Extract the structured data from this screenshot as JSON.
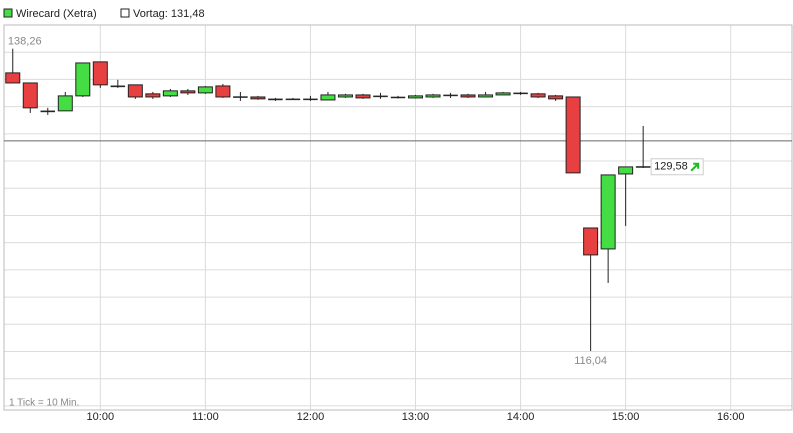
{
  "chart_data": {
    "type": "candlestick",
    "series": [
      {
        "name": "Wirecard (Xetra)",
        "up_color": "#44dd44",
        "down_color": "#e84040",
        "open": [
          136.48,
          135.74,
          133.69,
          133.69,
          134.79,
          137.29,
          135.53,
          135.6,
          134.94,
          134.79,
          135.16,
          135.01,
          135.52,
          134.71,
          134.71,
          134.57,
          134.57,
          134.55,
          134.49,
          134.71,
          134.86,
          134.79,
          134.71,
          134.64,
          134.71,
          134.86,
          134.86,
          134.71,
          134.86,
          135.01,
          134.94,
          134.79,
          134.71,
          125.08,
          123.54,
          129.05,
          129.6
        ],
        "high": [
          138.26,
          135.74,
          133.91,
          135.08,
          137.21,
          137.3,
          135.97,
          135.6,
          135.08,
          135.3,
          135.3,
          135.52,
          135.67,
          135.08,
          134.79,
          134.64,
          134.64,
          134.79,
          135.08,
          134.94,
          134.94,
          135.01,
          134.79,
          134.86,
          134.94,
          135.01,
          134.94,
          135.08,
          135.08,
          135.08,
          135.01,
          134.86,
          134.71,
          125.08,
          128.98,
          129.57,
          132.58
        ],
        "low": [
          135.74,
          133.54,
          133.39,
          133.69,
          134.71,
          135.38,
          135.38,
          134.57,
          134.57,
          134.71,
          134.86,
          134.94,
          134.64,
          134.42,
          134.5,
          134.42,
          134.5,
          134.42,
          134.49,
          134.64,
          134.57,
          134.57,
          134.6,
          134.6,
          134.64,
          134.64,
          134.64,
          134.71,
          134.86,
          134.86,
          134.64,
          134.42,
          129.13,
          116.04,
          121.04,
          125.23,
          129.49
        ],
        "close": [
          135.74,
          133.91,
          133.61,
          134.79,
          137.21,
          135.6,
          135.45,
          134.71,
          134.71,
          135.16,
          135.01,
          135.45,
          134.71,
          134.74,
          134.57,
          134.49,
          134.57,
          134.57,
          134.86,
          134.86,
          134.64,
          134.76,
          134.69,
          134.79,
          134.86,
          134.84,
          134.71,
          134.86,
          135.01,
          134.98,
          134.71,
          134.57,
          129.13,
          123.1,
          128.98,
          129.57,
          129.58
        ]
      }
    ],
    "x": [
      550,
      560,
      570,
      580,
      590,
      600,
      610,
      620,
      630,
      640,
      650,
      660,
      670,
      680,
      690,
      700,
      710,
      720,
      730,
      740,
      750,
      760,
      770,
      780,
      790,
      800,
      810,
      820,
      830,
      840,
      850,
      860,
      870,
      880,
      890,
      900,
      910
    ],
    "xlim": [
      545,
      995
    ],
    "xticks": [
      {
        "value": 600,
        "label": "10:00"
      },
      {
        "value": 660,
        "label": "11:00"
      },
      {
        "value": 720,
        "label": "12:00"
      },
      {
        "value": 780,
        "label": "13:00"
      },
      {
        "value": 840,
        "label": "14:00"
      },
      {
        "value": 900,
        "label": "15:00"
      },
      {
        "value": 960,
        "label": "16:00"
      }
    ],
    "ylim": [
      111.7,
      140.0
    ],
    "yticks": [
      112,
      114,
      116,
      118,
      120,
      122,
      124,
      126,
      128,
      130,
      132,
      134,
      136,
      138,
      140
    ],
    "grid": true,
    "reference_line": {
      "label": "Vortag: 131,48",
      "value": 131.48,
      "color": "#666666"
    },
    "annotations": [
      {
        "text": "138,26",
        "value": 138.26,
        "x": 550
      },
      {
        "text": "116,04",
        "value": 116.04,
        "x": 880
      }
    ],
    "last_price": {
      "text": "129,58",
      "value": 129.58,
      "x": 910,
      "arrow_color": "#22bb22"
    },
    "footnote": "1 Tick = 10 Min."
  }
}
